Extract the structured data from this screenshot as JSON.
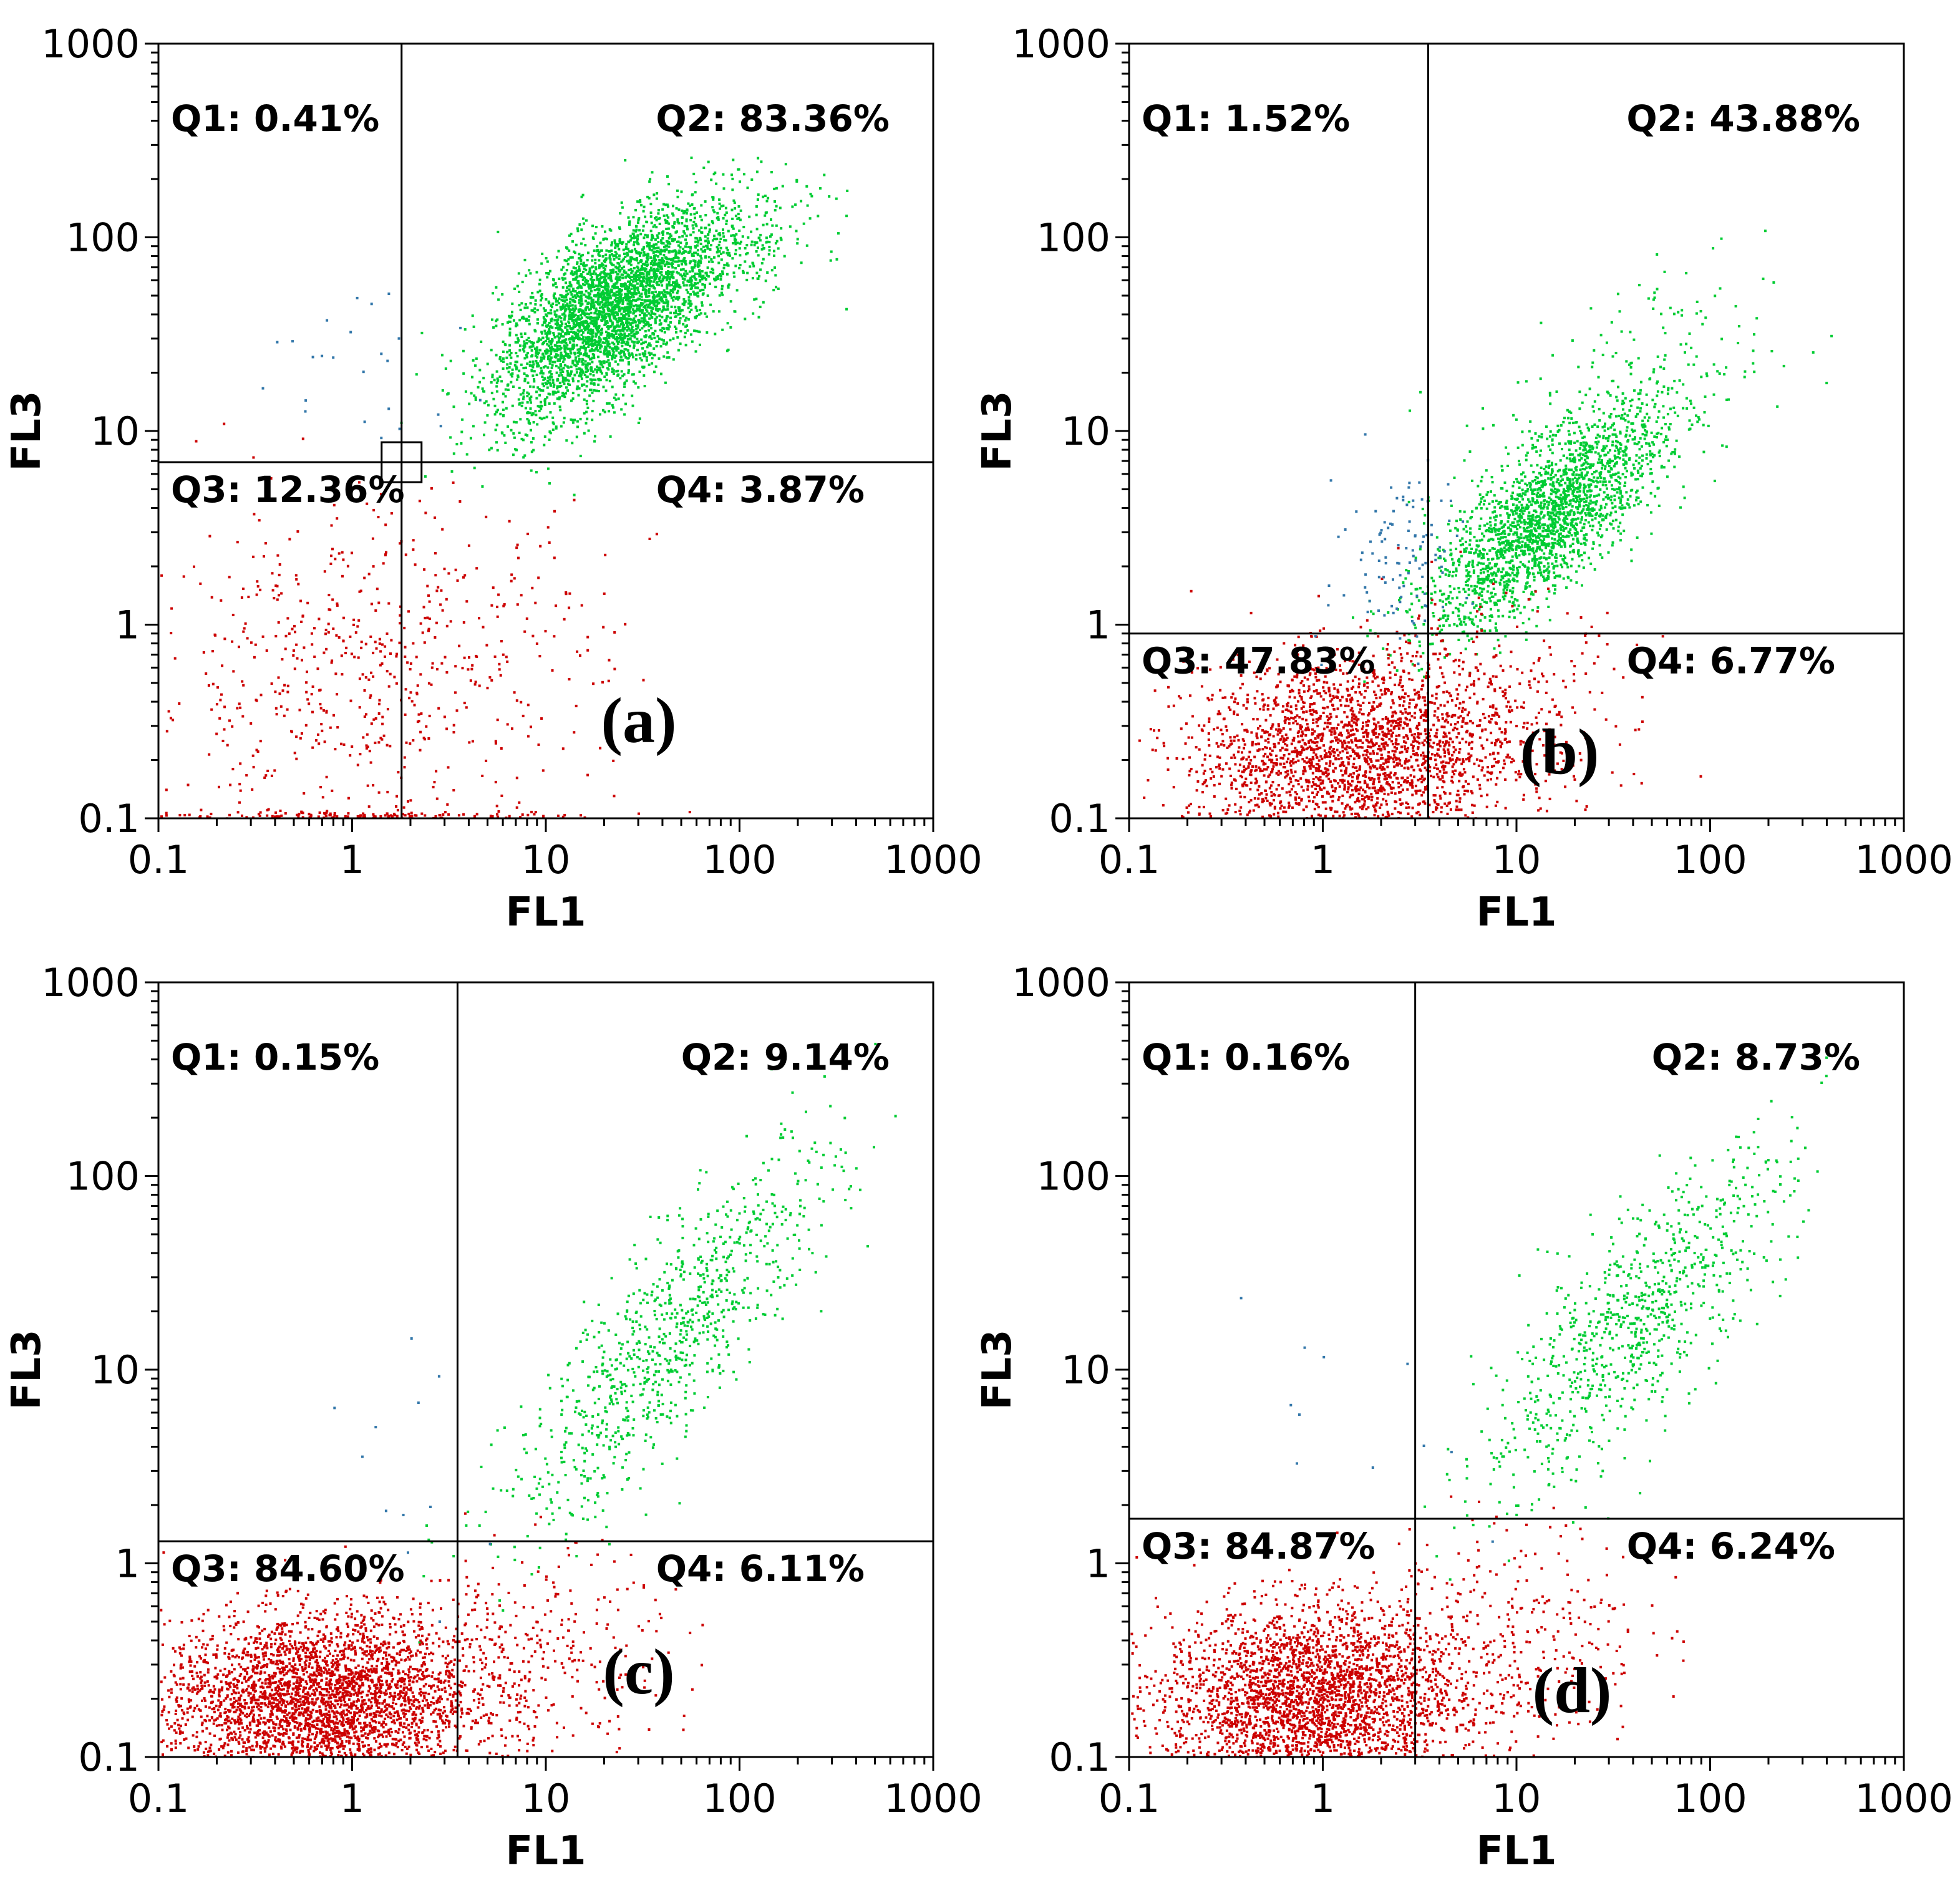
{
  "chart_data": [
    {
      "type": "scatter",
      "scale": "log",
      "panel_label": "(a)",
      "xlabel": "FL1",
      "ylabel": "FL3",
      "xlim": [
        0.1,
        1000
      ],
      "ylim": [
        0.1,
        1000
      ],
      "x_ticks": [
        "0.1",
        "1",
        "10",
        "100",
        "1000"
      ],
      "y_ticks": [
        "0.1",
        "1",
        "10",
        "100",
        "1000"
      ],
      "gate": {
        "x": 1.8,
        "y": 6.9
      },
      "quadrants": {
        "q1": "Q1: 0.41%",
        "q2": "Q2: 83.36%",
        "q3": "Q3: 12.36%",
        "q4": "Q4: 3.87%"
      },
      "clusters": [
        {
          "color": "#00cc33",
          "n": 3200,
          "cx": 20,
          "cy": 40,
          "sx": 0.28,
          "sy": 0.26,
          "rho": 0.6
        },
        {
          "color": "#00cc33",
          "n": 500,
          "cx": 60,
          "cy": 80,
          "sx": 0.3,
          "sy": 0.2,
          "rho": 0.5
        },
        {
          "color": "#cc0000",
          "n": 650,
          "cx": 1.2,
          "cy": 0.55,
          "sx": 0.6,
          "sy": 0.45,
          "rho": 0.1
        },
        {
          "color": "#cc0000",
          "n": 160,
          "cx": 1.0,
          "cy": 0.105,
          "sx": 0.7,
          "sy": 0.01,
          "rho": 0.0
        },
        {
          "color": "#3377aa",
          "n": 25,
          "cx": 1.0,
          "cy": 20,
          "sx": 0.3,
          "sy": 0.25,
          "rho": 0.2
        }
      ]
    },
    {
      "type": "scatter",
      "scale": "log",
      "panel_label": "(b)",
      "xlabel": "FL1",
      "ylabel": "FL3",
      "xlim": [
        0.1,
        1000
      ],
      "ylim": [
        0.1,
        1000
      ],
      "x_ticks": [
        "0.1",
        "1",
        "10",
        "100",
        "1000"
      ],
      "y_ticks": [
        "0.1",
        "1",
        "10",
        "100",
        "1000"
      ],
      "gate": {
        "x": 3.5,
        "y": 0.9
      },
      "quadrants": {
        "q1": "Q1: 1.52%",
        "q2": "Q2: 43.88%",
        "q3": "Q3: 47.83%",
        "q4": "Q4: 6.77%"
      },
      "clusters": [
        {
          "color": "#00cc33",
          "n": 2100,
          "cx": 14,
          "cy": 3.5,
          "sx": 0.3,
          "sy": 0.28,
          "rho": 0.75
        },
        {
          "color": "#00cc33",
          "n": 250,
          "cx": 30,
          "cy": 12,
          "sx": 0.4,
          "sy": 0.35,
          "rho": 0.5
        },
        {
          "color": "#cc0000",
          "n": 2400,
          "cx": 1.4,
          "cy": 0.22,
          "sx": 0.42,
          "sy": 0.25,
          "rho": 0.1
        },
        {
          "color": "#cc0000",
          "n": 250,
          "cx": 8,
          "cy": 0.35,
          "sx": 0.35,
          "sy": 0.3,
          "rho": 0.0
        },
        {
          "color": "#3377aa",
          "n": 110,
          "cx": 2.6,
          "cy": 2.5,
          "sx": 0.18,
          "sy": 0.25,
          "rho": 0.3
        }
      ]
    },
    {
      "type": "scatter",
      "scale": "log",
      "panel_label": "(c)",
      "xlabel": "FL1",
      "ylabel": "FL3",
      "xlim": [
        0.1,
        1000
      ],
      "ylim": [
        0.1,
        1000
      ],
      "x_ticks": [
        "0.1",
        "1",
        "10",
        "100",
        "1000"
      ],
      "y_ticks": [
        "0.1",
        "1",
        "10",
        "100",
        "1000"
      ],
      "gate": {
        "x": 3.5,
        "y": 1.3
      },
      "quadrants": {
        "q1": "Q1: 0.15%",
        "q2": "Q2: 9.14%",
        "q3": "Q3: 84.60%",
        "q4": "Q4: 6.11%"
      },
      "clusters": [
        {
          "color": "#00cc33",
          "n": 900,
          "cx": 45,
          "cy": 15,
          "sx": 0.42,
          "sy": 0.5,
          "rho": 0.85
        },
        {
          "color": "#cc0000",
          "n": 3300,
          "cx": 0.65,
          "cy": 0.2,
          "sx": 0.4,
          "sy": 0.22,
          "rho": 0.05
        },
        {
          "color": "#cc0000",
          "n": 350,
          "cx": 8,
          "cy": 0.3,
          "sx": 0.35,
          "sy": 0.28,
          "rho": 0.1
        },
        {
          "color": "#3377aa",
          "n": 12,
          "cx": 1.8,
          "cy": 4,
          "sx": 0.3,
          "sy": 0.4,
          "rho": 0.0
        }
      ]
    },
    {
      "type": "scatter",
      "scale": "log",
      "panel_label": "(d)",
      "xlabel": "FL1",
      "ylabel": "FL3",
      "xlim": [
        0.1,
        1000
      ],
      "ylim": [
        0.1,
        1000
      ],
      "x_ticks": [
        "0.1",
        "1",
        "10",
        "100",
        "1000"
      ],
      "y_ticks": [
        "0.1",
        "1",
        "10",
        "100",
        "1000"
      ],
      "gate": {
        "x": 3.0,
        "y": 1.7
      },
      "quadrants": {
        "q1": "Q1: 0.16%",
        "q2": "Q2: 8.73%",
        "q3": "Q3: 84.87%",
        "q4": "Q4: 6.24%"
      },
      "clusters": [
        {
          "color": "#00cc33",
          "n": 850,
          "cx": 40,
          "cy": 18,
          "sx": 0.4,
          "sy": 0.45,
          "rho": 0.8
        },
        {
          "color": "#cc0000",
          "n": 3000,
          "cx": 0.85,
          "cy": 0.2,
          "sx": 0.38,
          "sy": 0.24,
          "rho": 0.05
        },
        {
          "color": "#cc0000",
          "n": 350,
          "cx": 9,
          "cy": 0.4,
          "sx": 0.35,
          "sy": 0.3,
          "rho": 0.1
        },
        {
          "color": "#3377aa",
          "n": 12,
          "cx": 1.5,
          "cy": 4,
          "sx": 0.3,
          "sy": 0.35,
          "rho": 0.0
        }
      ]
    }
  ]
}
